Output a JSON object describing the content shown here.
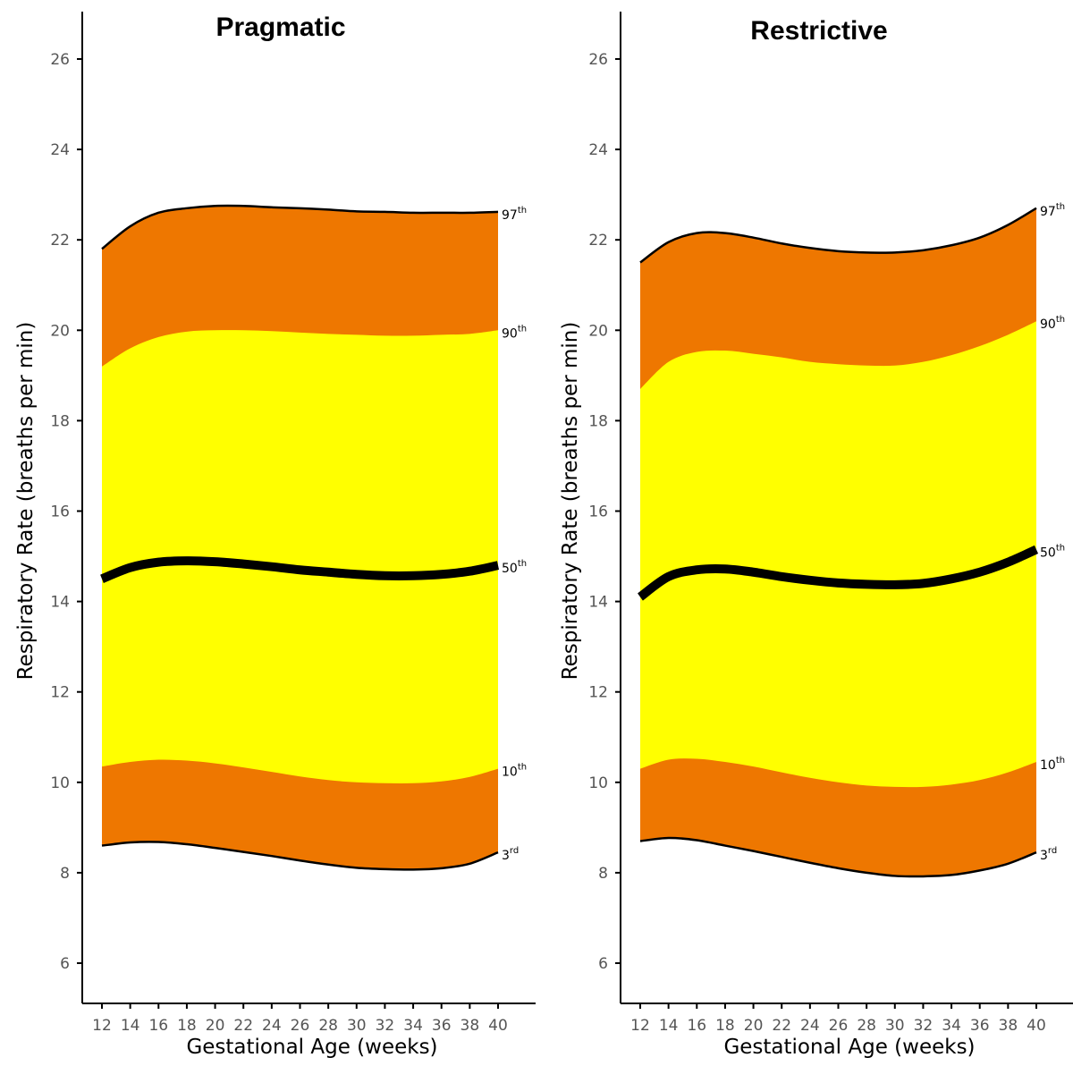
{
  "colors": {
    "outer_band": "#EE7700",
    "inner_band": "#FFFF00",
    "line": "#000000",
    "axis": "#000000",
    "tick_text": "#555555"
  },
  "chart_data": [
    {
      "type": "area",
      "title": "Pragmatic",
      "xlabel": "Gestational Age (weeks)",
      "ylabel": "Respiratory Rate (breaths per min)",
      "xlim": [
        10.5,
        43
      ],
      "ylim": [
        5,
        27
      ],
      "xticks": [
        12,
        14,
        16,
        18,
        20,
        22,
        24,
        26,
        28,
        30,
        32,
        34,
        36,
        38,
        40
      ],
      "yticks": [
        6,
        8,
        10,
        12,
        14,
        16,
        18,
        20,
        22,
        24,
        26
      ],
      "grid": false,
      "legend": "none",
      "x": [
        12,
        14,
        16,
        18,
        20,
        22,
        24,
        26,
        28,
        30,
        32,
        34,
        36,
        38,
        40
      ],
      "series": [
        {
          "name": "97",
          "suffix": "th",
          "values": [
            21.8,
            22.3,
            22.6,
            22.7,
            22.75,
            22.75,
            22.72,
            22.7,
            22.67,
            22.63,
            22.62,
            22.6,
            22.6,
            22.6,
            22.62
          ]
        },
        {
          "name": "90",
          "suffix": "th",
          "values": [
            19.2,
            19.6,
            19.85,
            19.97,
            20.0,
            20.0,
            19.98,
            19.95,
            19.92,
            19.9,
            19.88,
            19.88,
            19.9,
            19.92,
            20.0
          ]
        },
        {
          "name": "50",
          "suffix": "th",
          "values": [
            14.5,
            14.75,
            14.87,
            14.9,
            14.88,
            14.83,
            14.77,
            14.7,
            14.65,
            14.6,
            14.57,
            14.57,
            14.6,
            14.67,
            14.8
          ]
        },
        {
          "name": "10",
          "suffix": "th",
          "values": [
            10.35,
            10.45,
            10.5,
            10.48,
            10.42,
            10.33,
            10.23,
            10.13,
            10.05,
            10.0,
            9.98,
            9.98,
            10.02,
            10.12,
            10.3
          ]
        },
        {
          "name": "3",
          "suffix": "rd",
          "values": [
            8.6,
            8.67,
            8.68,
            8.63,
            8.55,
            8.46,
            8.37,
            8.27,
            8.18,
            8.11,
            8.08,
            8.07,
            8.1,
            8.2,
            8.45
          ]
        }
      ]
    },
    {
      "type": "area",
      "title": "Restrictive",
      "xlabel": "Gestational Age (weeks)",
      "ylabel": "Respiratory Rate (breaths per min)",
      "xlim": [
        10.5,
        43
      ],
      "ylim": [
        5,
        27
      ],
      "xticks": [
        12,
        14,
        16,
        18,
        20,
        22,
        24,
        26,
        28,
        30,
        32,
        34,
        36,
        38,
        40
      ],
      "yticks": [
        6,
        8,
        10,
        12,
        14,
        16,
        18,
        20,
        22,
        24,
        26
      ],
      "grid": false,
      "legend": "none",
      "x": [
        12,
        14,
        16,
        18,
        20,
        22,
        24,
        26,
        28,
        30,
        32,
        34,
        36,
        38,
        40
      ],
      "series": [
        {
          "name": "97",
          "suffix": "th",
          "values": [
            21.5,
            21.95,
            22.15,
            22.15,
            22.05,
            21.92,
            21.82,
            21.75,
            21.72,
            21.72,
            21.77,
            21.88,
            22.05,
            22.33,
            22.7
          ]
        },
        {
          "name": "90",
          "suffix": "th",
          "values": [
            18.7,
            19.3,
            19.52,
            19.55,
            19.48,
            19.4,
            19.3,
            19.25,
            19.22,
            19.22,
            19.3,
            19.45,
            19.65,
            19.9,
            20.2
          ]
        },
        {
          "name": "50",
          "suffix": "th",
          "values": [
            14.1,
            14.55,
            14.7,
            14.72,
            14.65,
            14.55,
            14.47,
            14.41,
            14.38,
            14.37,
            14.4,
            14.5,
            14.65,
            14.87,
            15.15
          ]
        },
        {
          "name": "10",
          "suffix": "th",
          "values": [
            10.3,
            10.5,
            10.52,
            10.45,
            10.35,
            10.22,
            10.1,
            10.0,
            9.93,
            9.9,
            9.9,
            9.95,
            10.05,
            10.22,
            10.45
          ]
        },
        {
          "name": "3",
          "suffix": "rd",
          "values": [
            8.7,
            8.77,
            8.72,
            8.6,
            8.48,
            8.35,
            8.22,
            8.1,
            8.0,
            7.93,
            7.92,
            7.95,
            8.05,
            8.2,
            8.45
          ]
        }
      ]
    }
  ]
}
